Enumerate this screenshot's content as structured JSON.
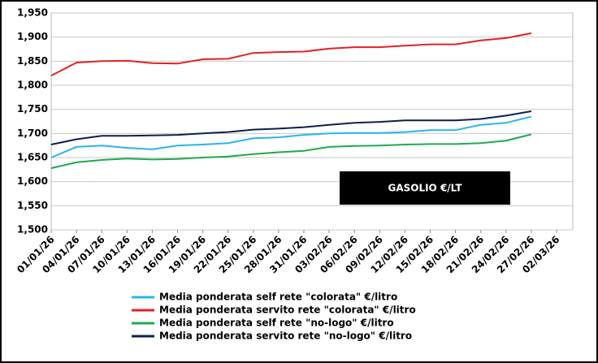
{
  "chart_data": {
    "type": "line",
    "annotation": "GASOLIO €/LT",
    "categories": [
      "01/01/26",
      "04/01/26",
      "07/01/26",
      "10/01/26",
      "13/01/26",
      "16/01/26",
      "19/01/26",
      "22/01/26",
      "25/01/26",
      "28/01/26",
      "31/01/26",
      "03/02/26",
      "06/02/26",
      "09/02/26",
      "12/02/26",
      "15/02/26",
      "18/02/26",
      "21/02/26",
      "24/02/26",
      "27/02/26",
      "02/03/26"
    ],
    "series": [
      {
        "name": "Media ponderata self rete \"colorata\" €/litro",
        "color": "#29b6e8",
        "values": [
          1.65,
          1.672,
          1.675,
          1.67,
          1.667,
          1.675,
          1.677,
          1.68,
          1.69,
          1.692,
          1.697,
          1.7,
          1.701,
          1.701,
          1.703,
          1.707,
          1.707,
          1.718,
          1.722,
          1.735,
          null
        ]
      },
      {
        "name": "Media ponderata servito rete \"colorata\" €/litro",
        "color": "#e02222",
        "values": [
          1.82,
          1.847,
          1.85,
          1.851,
          1.846,
          1.845,
          1.854,
          1.855,
          1.867,
          1.869,
          1.87,
          1.876,
          1.879,
          1.879,
          1.882,
          1.885,
          1.885,
          1.893,
          1.898,
          1.908,
          null
        ]
      },
      {
        "name": "Media ponderata self rete \"no-logo\" €/litro",
        "color": "#22a84f",
        "values": [
          1.628,
          1.64,
          1.645,
          1.648,
          1.646,
          1.647,
          1.65,
          1.652,
          1.657,
          1.661,
          1.664,
          1.672,
          1.674,
          1.675,
          1.677,
          1.678,
          1.678,
          1.68,
          1.685,
          1.698,
          null
        ]
      },
      {
        "name": "Media ponderata servito rete \"no-logo\" €/litro",
        "color": "#0e1f4d",
        "values": [
          1.677,
          1.688,
          1.695,
          1.695,
          1.696,
          1.697,
          1.7,
          1.703,
          1.708,
          1.71,
          1.713,
          1.718,
          1.722,
          1.724,
          1.727,
          1.727,
          1.727,
          1.73,
          1.737,
          1.746,
          null
        ]
      }
    ],
    "ylim": [
      1.5,
      1.95
    ],
    "yticks": [
      {
        "value": 1.5,
        "label": "1,500"
      },
      {
        "value": 1.55,
        "label": "1,550"
      },
      {
        "value": 1.6,
        "label": "1,600"
      },
      {
        "value": 1.65,
        "label": "1,650"
      },
      {
        "value": 1.7,
        "label": "1,700"
      },
      {
        "value": 1.75,
        "label": "1,750"
      },
      {
        "value": 1.8,
        "label": "1,800"
      },
      {
        "value": 1.85,
        "label": "1,850"
      },
      {
        "value": 1.9,
        "label": "1,900"
      },
      {
        "value": 1.95,
        "label": "1,950"
      }
    ],
    "grid": true,
    "legend": "bottom"
  }
}
